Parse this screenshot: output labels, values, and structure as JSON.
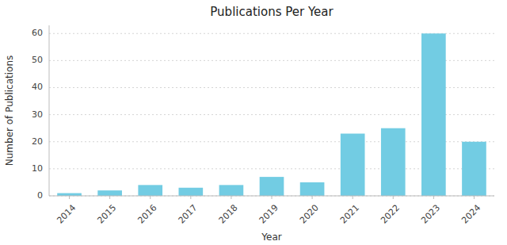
{
  "chart_data": {
    "type": "bar",
    "title": "Publications Per Year",
    "xlabel": "Year",
    "ylabel": "Number of Publications",
    "categories": [
      "2014",
      "2015",
      "2016",
      "2017",
      "2018",
      "2019",
      "2020",
      "2021",
      "2022",
      "2023",
      "2024"
    ],
    "values": [
      1,
      2,
      4,
      3,
      4,
      7,
      5,
      23,
      25,
      60,
      20
    ],
    "color": "#72cce3",
    "ylim": [
      0,
      63
    ],
    "yticks": [
      0,
      10,
      20,
      30,
      40,
      50,
      60
    ],
    "grid": true
  }
}
